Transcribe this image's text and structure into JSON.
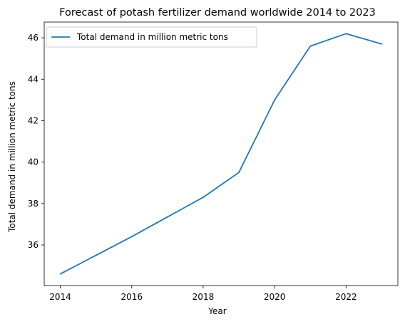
{
  "chart_data": {
    "type": "line",
    "title": "Forecast of potash fertilizer demand worldwide 2014 to 2023",
    "xlabel": "Year",
    "ylabel": "Total demand in million metric tons",
    "x": [
      2014,
      2015,
      2016,
      2017,
      2018,
      2019,
      2020,
      2021,
      2022,
      2023
    ],
    "series": [
      {
        "name": "Total demand in million metric tons",
        "values": [
          34.6,
          35.5,
          36.4,
          37.35,
          38.3,
          39.5,
          43.0,
          45.6,
          46.2,
          45.7
        ],
        "color": "#1f77b4"
      }
    ],
    "xticks": [
      2014,
      2016,
      2018,
      2020,
      2022
    ],
    "yticks": [
      36,
      38,
      40,
      42,
      44,
      46
    ],
    "xlim": [
      2013.55,
      2023.45
    ],
    "ylim": [
      34.04,
      46.76
    ],
    "grid": false,
    "legend": "top-left"
  }
}
